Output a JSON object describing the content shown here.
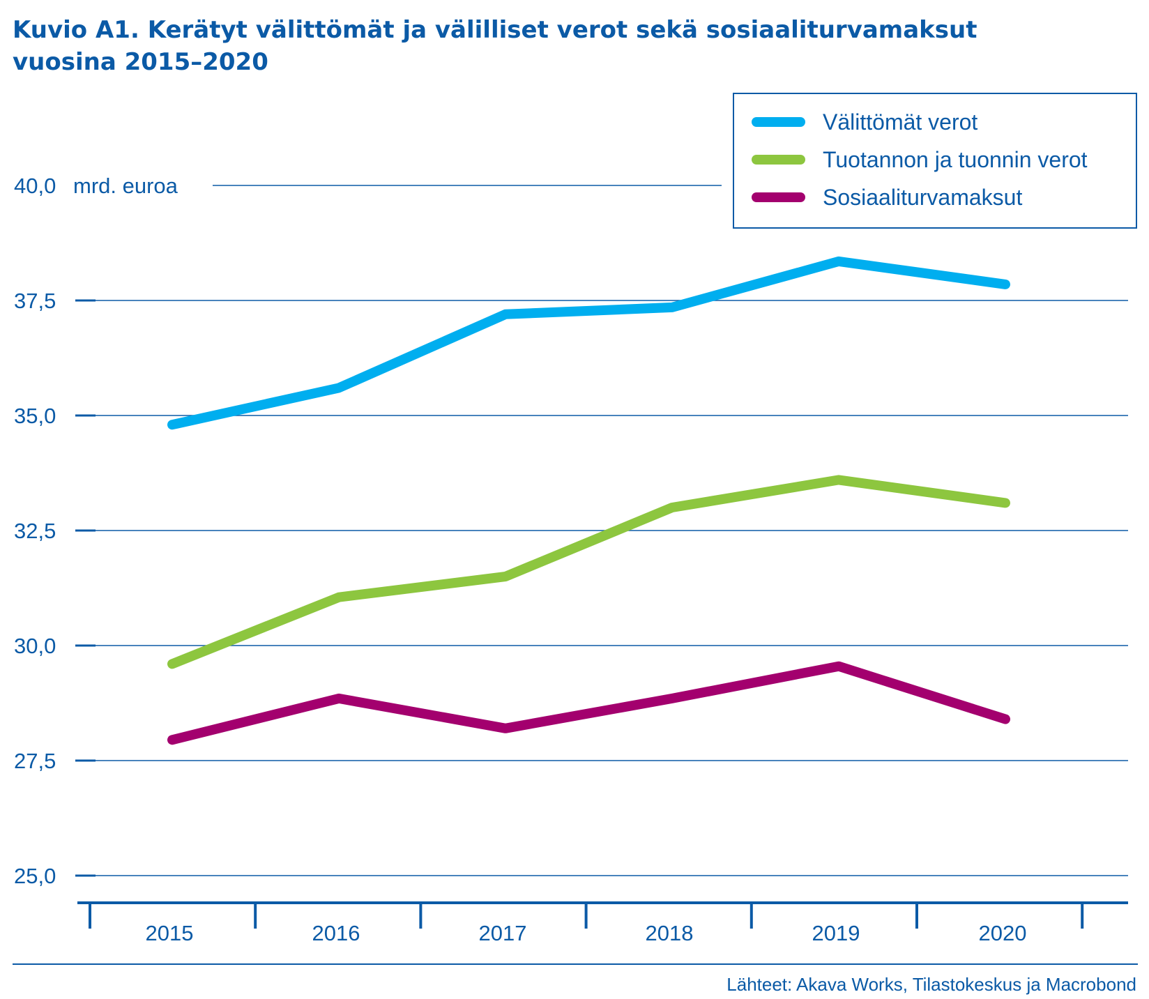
{
  "header": {
    "title_line1": "Kuvio A1. Kerätyt välittömät ja välilliset verot sekä sosiaaliturvamaksut",
    "title_line2": "vuosina 2015–2020"
  },
  "footer": {
    "source": "Lähteet: Akava Works, Tilastokeskus ja Macrobond"
  },
  "colors": {
    "text": "#0b5aa6",
    "axis": "#0b5aa6",
    "grid": "#0b5aa6"
  },
  "chart_data": {
    "type": "line",
    "x": [
      "2015",
      "2016",
      "2017",
      "2018",
      "2019",
      "2020"
    ],
    "ylim": [
      25.0,
      40.0
    ],
    "yticks": [
      "25,0",
      "27,5",
      "30,0",
      "32,5",
      "35,0",
      "37,5",
      "40,0"
    ],
    "ytick_values": [
      25.0,
      27.5,
      30.0,
      32.5,
      35.0,
      37.5,
      40.0
    ],
    "y_unit": "mrd. euroa",
    "grid": true,
    "legend_position": "top-right",
    "series": [
      {
        "name": "Välittömät verot",
        "color": "#00aeef",
        "values": [
          34.8,
          35.6,
          37.2,
          37.35,
          38.35,
          37.85
        ]
      },
      {
        "name": "Tuotannon ja tuonnin verot",
        "color": "#8dc63f",
        "values": [
          29.6,
          31.05,
          31.5,
          33.0,
          33.6,
          33.1
        ]
      },
      {
        "name": "Sosiaaliturvamaksut",
        "color": "#a3006e",
        "values": [
          27.95,
          28.85,
          28.2,
          28.85,
          29.55,
          28.4
        ]
      }
    ]
  }
}
